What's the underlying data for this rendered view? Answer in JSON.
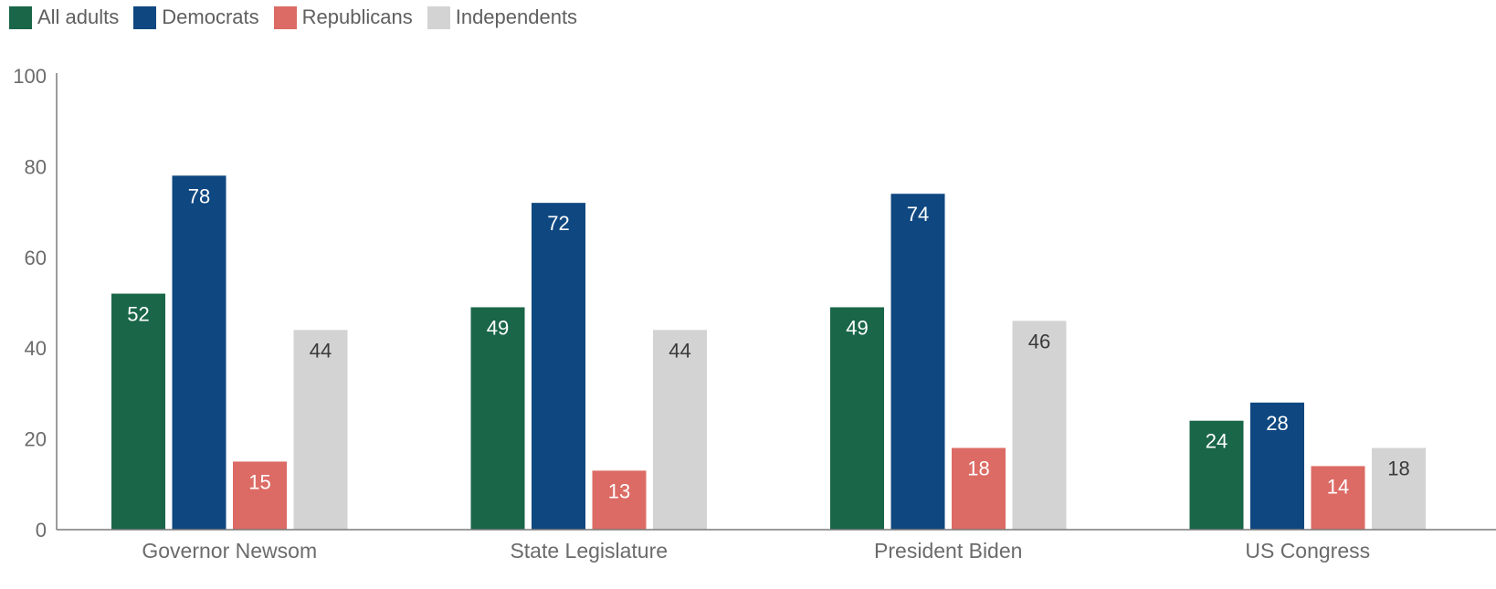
{
  "chart_data": {
    "type": "bar",
    "categories": [
      "Governor Newsom",
      "State Legislature",
      "President Biden",
      "US Congress"
    ],
    "series": [
      {
        "name": "All adults",
        "color": "#1a6648",
        "values": [
          52,
          49,
          49,
          24
        ]
      },
      {
        "name": "Democrats",
        "color": "#0f4780",
        "values": [
          78,
          72,
          74,
          28
        ]
      },
      {
        "name": "Republicans",
        "color": "#dc6b65",
        "values": [
          15,
          13,
          18,
          14
        ]
      },
      {
        "name": "Independents",
        "color": "#d3d3d3",
        "values": [
          44,
          44,
          46,
          18
        ]
      }
    ],
    "ylim": [
      0,
      100
    ],
    "yticks": [
      0,
      20,
      40,
      60,
      80,
      100
    ],
    "grid": false,
    "legend_position": "top-left",
    "data_labels": true
  }
}
